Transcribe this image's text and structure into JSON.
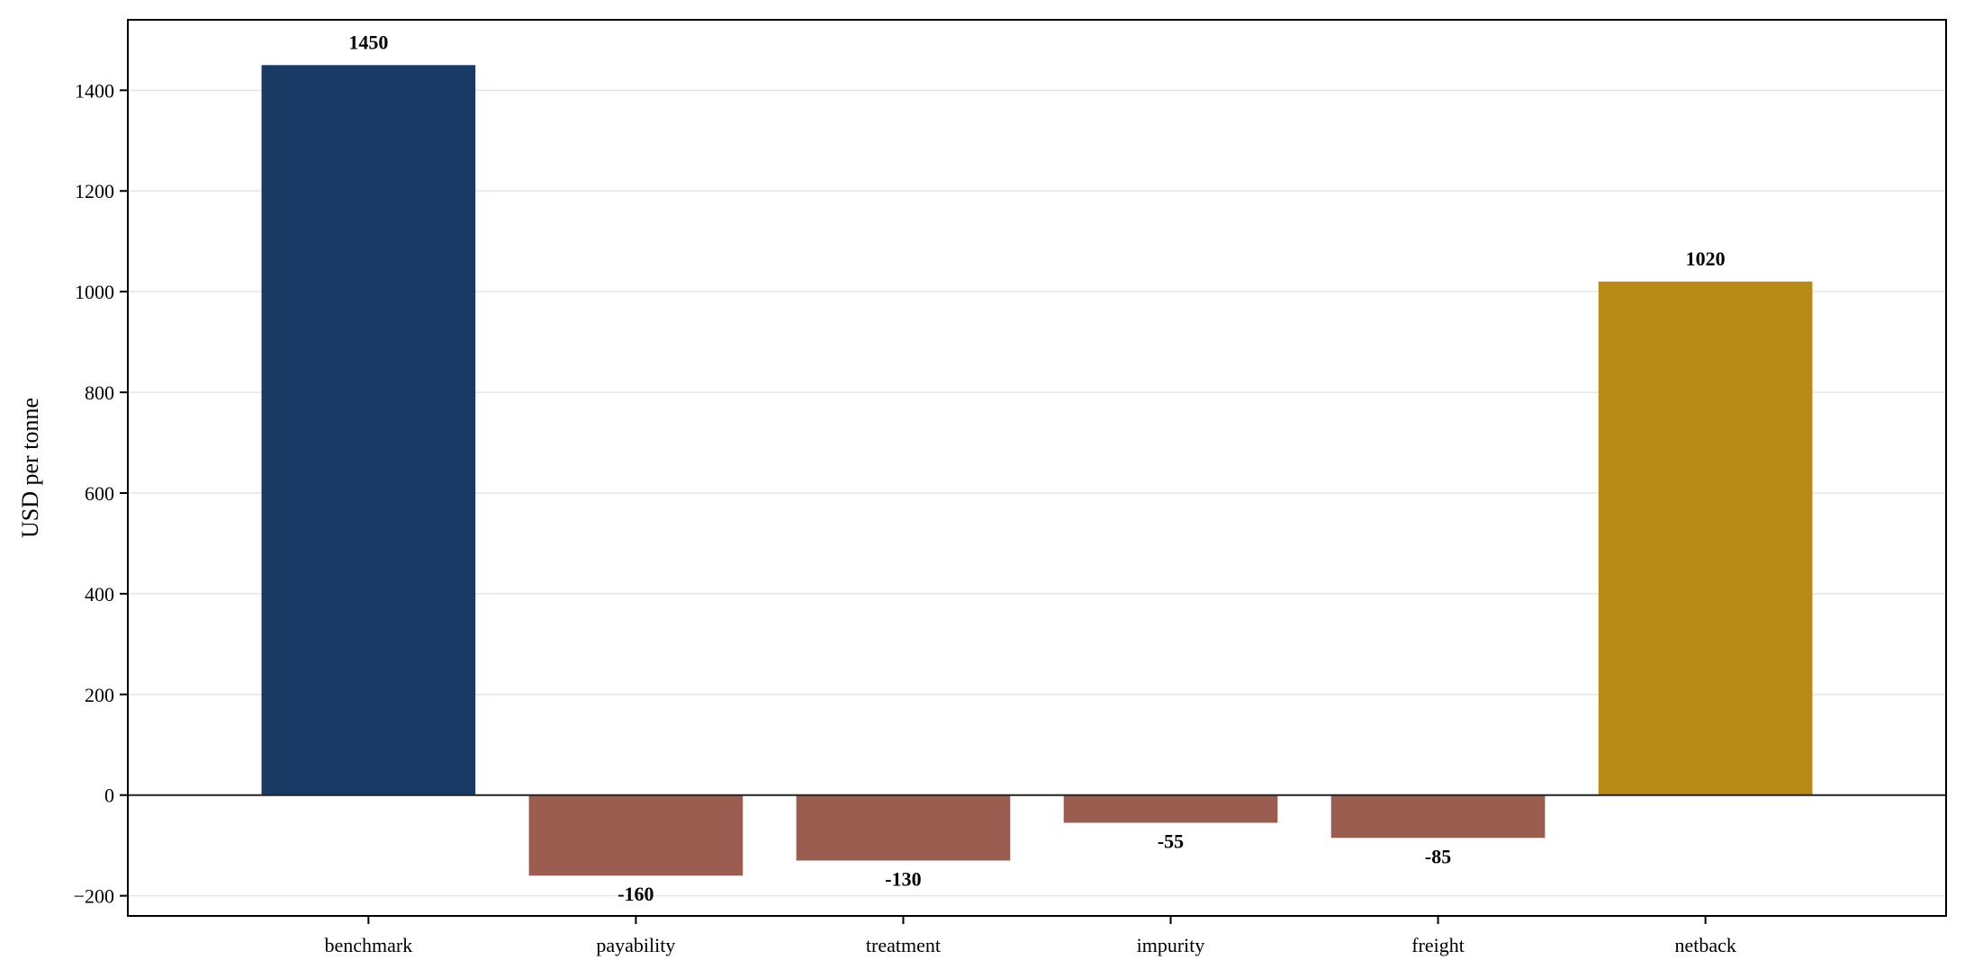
{
  "chart_data": {
    "type": "bar",
    "categories": [
      "benchmark",
      "payability",
      "treatment",
      "impurity",
      "freight",
      "netback"
    ],
    "values": [
      1450,
      -160,
      -130,
      -55,
      -85,
      1020
    ],
    "data_labels": [
      "1450",
      "-160",
      "-130",
      "-55",
      "-85",
      "1020"
    ],
    "title": "",
    "xlabel": "",
    "ylabel": "USD per tonne",
    "ylim": [
      -240,
      1540
    ],
    "yticks": [
      -200,
      0,
      200,
      400,
      600,
      800,
      1000,
      1200,
      1400
    ],
    "ytick_labels": [
      "−200",
      "0",
      "200",
      "400",
      "600",
      "800",
      "1000",
      "1200",
      "1400"
    ],
    "grid": "horizontal",
    "colors": {
      "benchmark": "#1a3a66",
      "deduction": "#9c5d51",
      "netback": "#b88a18"
    }
  }
}
